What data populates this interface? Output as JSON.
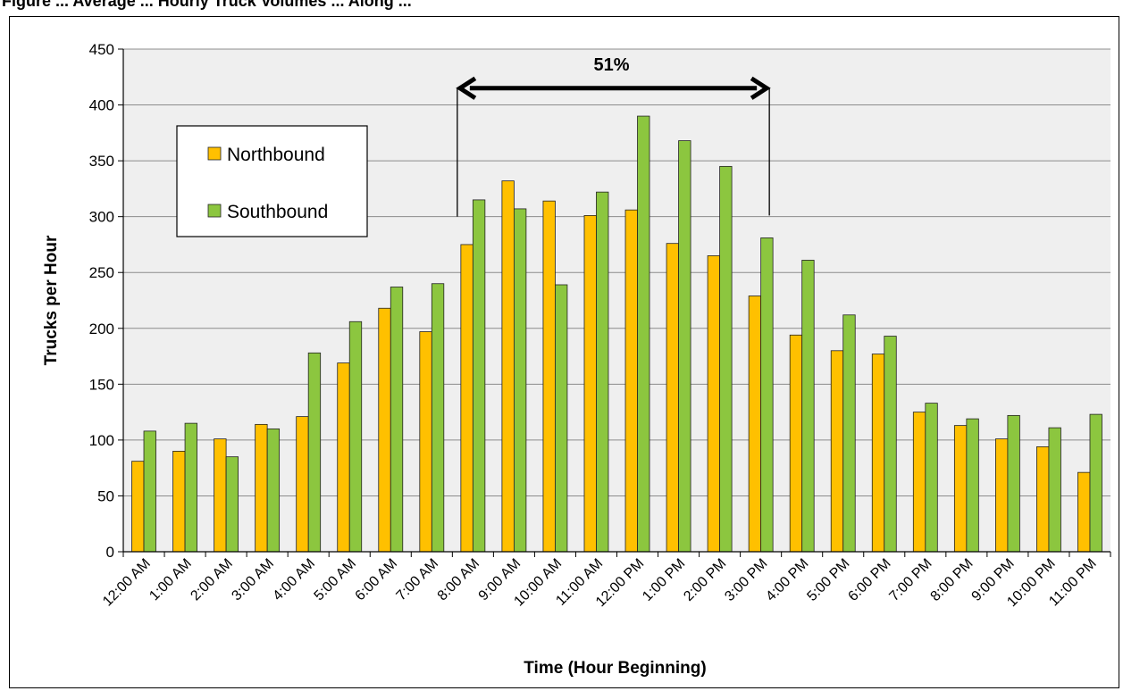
{
  "header_fragment": "Figure ... Average ... Hourly Truck Volumes ... Along ...",
  "chart_data": {
    "type": "bar",
    "title": "",
    "xlabel": "Time (Hour Beginning)",
    "ylabel": "Trucks per Hour",
    "ylim": [
      0,
      450
    ],
    "ytick_step": 50,
    "grid": true,
    "legend_position": "top-left",
    "categories": [
      "12:00 AM",
      "1:00 AM",
      "2:00 AM",
      "3:00 AM",
      "4:00 AM",
      "5:00 AM",
      "6:00 AM",
      "7:00 AM",
      "8:00 AM",
      "9:00 AM",
      "10:00 AM",
      "11:00 AM",
      "12:00 PM",
      "1:00 PM",
      "2:00 PM",
      "3:00 PM",
      "4:00 PM",
      "5:00 PM",
      "6:00 PM",
      "7:00 PM",
      "8:00 PM",
      "9:00 PM",
      "10:00 PM",
      "11:00 PM"
    ],
    "series": [
      {
        "name": "Northbound",
        "color": "#FFC000",
        "values": [
          81,
          90,
          101,
          114,
          121,
          169,
          218,
          197,
          275,
          332,
          314,
          301,
          306,
          276,
          265,
          229,
          194,
          180,
          177,
          125,
          113,
          101,
          94,
          71
        ]
      },
      {
        "name": "Southbound",
        "color": "#8CC63F",
        "values": [
          108,
          115,
          85,
          110,
          178,
          206,
          237,
          240,
          315,
          307,
          239,
          322,
          390,
          368,
          345,
          281,
          261,
          212,
          193,
          133,
          119,
          122,
          111,
          123
        ]
      }
    ],
    "annotation": {
      "text": "51%",
      "from_category": "8:00 AM",
      "to_category": "3:00 PM"
    }
  },
  "colors": {
    "plot_background": "#EFEFEF",
    "gridline": "#8C8C8C",
    "bar_outline": "#222222"
  }
}
